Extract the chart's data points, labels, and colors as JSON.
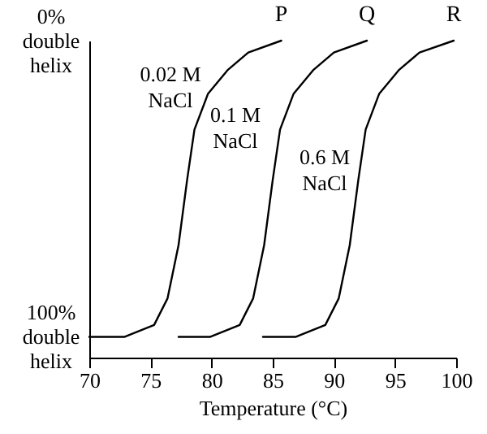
{
  "chart_data": {
    "type": "line",
    "xlabel": "Temperature (°C)",
    "xlim": [
      70,
      100
    ],
    "xticks": [
      70,
      75,
      80,
      85,
      90,
      95,
      100
    ],
    "ylim": [
      107,
      0
    ],
    "yticks": [
      {
        "value": 100,
        "label": "100%\ndouble\nhelix"
      },
      {
        "value": 0,
        "label": "0%\ndouble\nhelix"
      }
    ],
    "grid": false,
    "legend": false,
    "marker": "none",
    "line_style": "solid",
    "series": [
      {
        "name": "P",
        "color": "#000000",
        "x": [
          70,
          72.9,
          75.3,
          76.4,
          77.3,
          78,
          78.6,
          79.7,
          81.3,
          83,
          85.7
        ],
        "values": [
          100,
          100,
          96,
          87,
          69,
          47,
          30,
          18,
          10,
          4,
          0
        ]
      },
      {
        "name": "Q",
        "color": "#000000",
        "x": [
          77.3,
          79.9,
          82.3,
          83.4,
          84.3,
          85,
          85.6,
          86.7,
          88.3,
          90,
          92.7
        ],
        "values": [
          100,
          100,
          96,
          87,
          69,
          47,
          30,
          18,
          10,
          4,
          0
        ]
      },
      {
        "name": "R",
        "color": "#000000",
        "x": [
          84.2,
          86.9,
          89.3,
          90.4,
          91.3,
          92,
          92.6,
          93.7,
          95.3,
          97,
          99.8
        ],
        "values": [
          100,
          100,
          96,
          87,
          69,
          47,
          30,
          18,
          10,
          4,
          0
        ]
      }
    ],
    "annotations": [
      "0.02 M\nNaCl",
      "0.1 M\nNaCl",
      "0.6 M\nNaCl"
    ]
  }
}
